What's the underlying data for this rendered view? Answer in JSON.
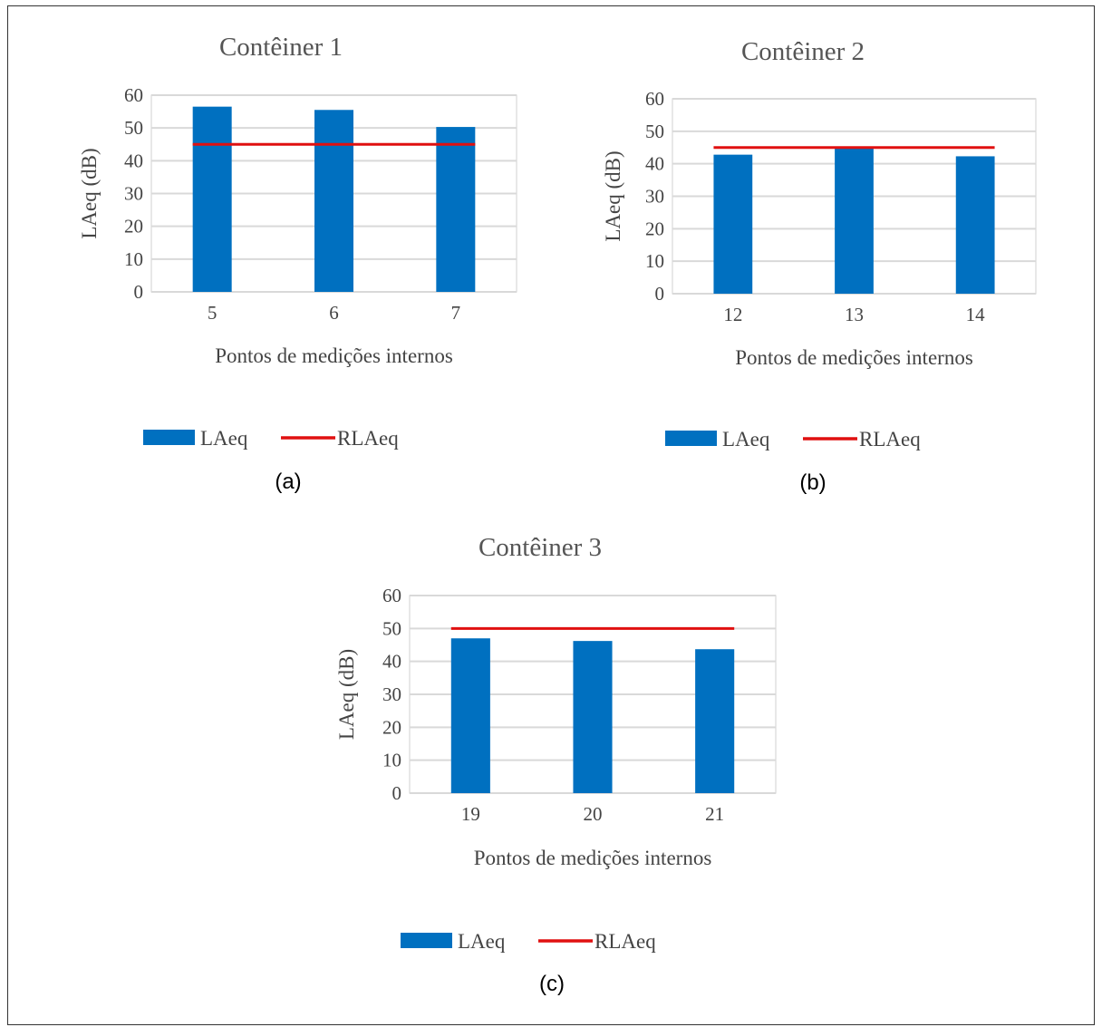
{
  "chart_data": [
    {
      "type": "bar",
      "title": "Contêiner 1",
      "categories": [
        "5",
        "6",
        "7"
      ],
      "series": [
        {
          "name": "LAeq",
          "type": "bar",
          "values": [
            56.5,
            55.5,
            50.3
          ]
        },
        {
          "name": "RLAeq",
          "type": "line",
          "values": [
            45,
            45,
            45
          ]
        }
      ],
      "xlabel": "Pontos de medições internos",
      "ylabel": "LAeq (dB)",
      "ylim": [
        0,
        60
      ],
      "yticks": [
        "0",
        "10",
        "20",
        "30",
        "40",
        "50",
        "60"
      ],
      "grid": true,
      "legend": "bottom",
      "caption": "(a)"
    },
    {
      "type": "bar",
      "title": "Contêiner 2",
      "categories": [
        "12",
        "13",
        "14"
      ],
      "series": [
        {
          "name": "LAeq",
          "type": "bar",
          "values": [
            42.8,
            44.8,
            42.3
          ]
        },
        {
          "name": "RLAeq",
          "type": "line",
          "values": [
            45,
            45,
            45
          ]
        }
      ],
      "xlabel": "Pontos de medições internos",
      "ylabel": "LAeq (dB)",
      "ylim": [
        0,
        60
      ],
      "yticks": [
        "0",
        "10",
        "20",
        "30",
        "40",
        "50",
        "60"
      ],
      "grid": true,
      "legend": "bottom",
      "caption": "(b)"
    },
    {
      "type": "bar",
      "title": "Contêiner 3",
      "categories": [
        "19",
        "20",
        "21"
      ],
      "series": [
        {
          "name": "LAeq",
          "type": "bar",
          "values": [
            47,
            46.2,
            43.7
          ]
        },
        {
          "name": "RLAeq",
          "type": "line",
          "values": [
            50,
            50,
            50
          ]
        }
      ],
      "xlabel": "Pontos de medições internos",
      "ylabel": "LAeq (dB)",
      "ylim": [
        0,
        60
      ],
      "yticks": [
        "0",
        "10",
        "20",
        "30",
        "40",
        "50",
        "60"
      ],
      "grid": true,
      "legend": "bottom",
      "caption": "(c)"
    }
  ],
  "colors": {
    "bar": "#0070C0",
    "line": "#E01010",
    "grid": "#D9D9D9"
  }
}
